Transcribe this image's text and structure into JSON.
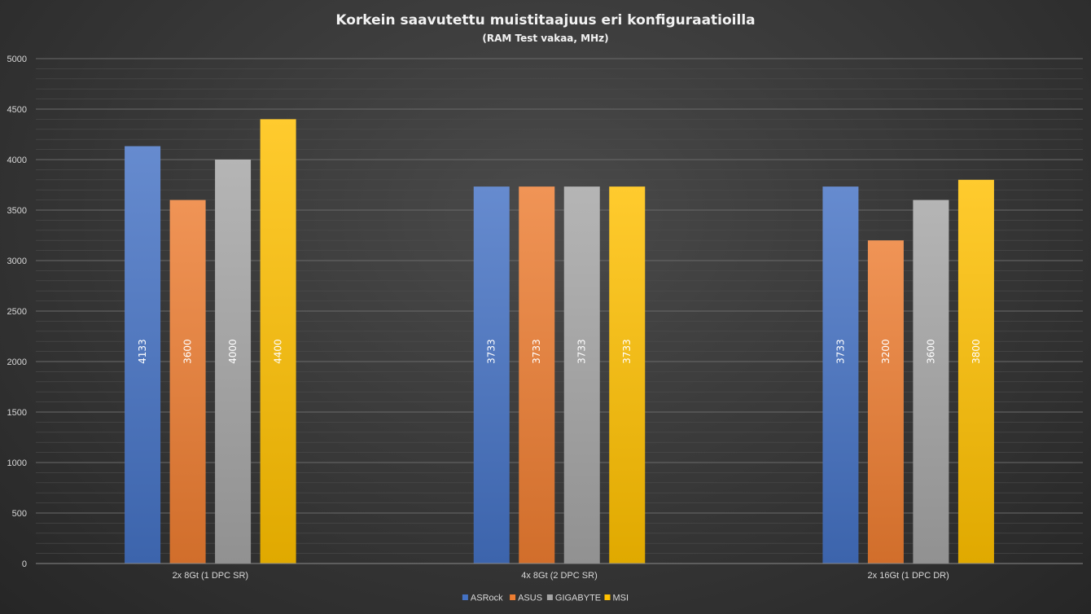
{
  "chart_data": {
    "type": "bar",
    "title": "Korkein saavutettu muistitaajuus eri konfiguraatioilla",
    "subtitle": "(RAM Test vakaa, MHz)",
    "xlabel": "",
    "ylabel": "",
    "categories": [
      "2x 8Gt (1 DPC SR)",
      "4x 8Gt (2 DPC SR)",
      "2x 16Gt (1 DPC DR)"
    ],
    "series": [
      {
        "name": "ASRock",
        "values": [
          4133,
          3733,
          3733
        ],
        "color": "#4472c4"
      },
      {
        "name": "ASUS",
        "values": [
          3600,
          3733,
          3200
        ],
        "color": "#ed7d31"
      },
      {
        "name": "GIGABYTE",
        "values": [
          4000,
          3733,
          3600
        ],
        "color": "#a5a5a5"
      },
      {
        "name": "MSI",
        "values": [
          4400,
          3733,
          3800
        ],
        "color": "#ffc000"
      }
    ],
    "ylim": [
      0,
      5000
    ],
    "yticks": [
      "0",
      "500",
      "1000",
      "1500",
      "2000",
      "2500",
      "3000",
      "3500",
      "4000",
      "4500",
      "5000"
    ],
    "grid": true,
    "legend": "bottom-center"
  }
}
